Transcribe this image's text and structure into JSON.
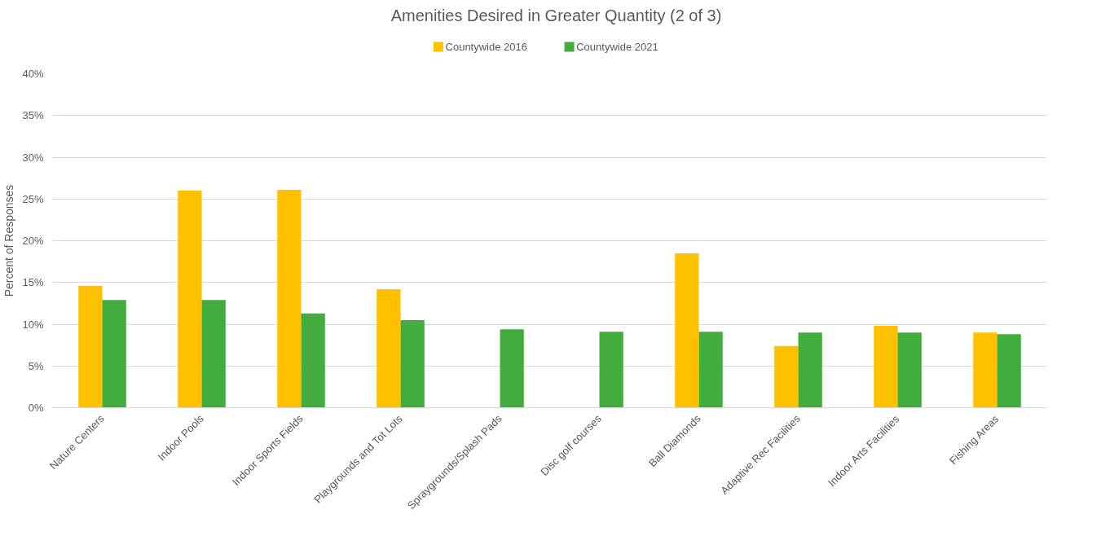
{
  "chart_data": {
    "type": "bar",
    "title": "Amenities Desired in Greater Quantity (2 of 3)",
    "ylabel": "Percent of Responses",
    "categories": [
      "Nature Centers",
      "Indoor Pools",
      "Indoor Sports Fields",
      "Playgrounds and Tot Lots",
      "Spraygrounds/Splash Pads",
      "Disc golf courses",
      "Ball Diamonds",
      "Adaptive Rec Facilities",
      "Indoor Arts Facilities",
      "Fishing Areas"
    ],
    "series": [
      {
        "name": "Countywide 2016",
        "color": "#ffc000",
        "values": [
          14.6,
          26.0,
          26.1,
          14.2,
          null,
          null,
          18.5,
          7.4,
          9.8,
          9.0
        ]
      },
      {
        "name": "Countywide 2021",
        "color": "#43ac3f",
        "values": [
          12.9,
          12.9,
          11.3,
          10.5,
          9.4,
          9.1,
          9.1,
          9.0,
          9.0,
          8.8
        ]
      }
    ],
    "ylim": [
      0,
      40
    ],
    "yticks": [
      {
        "value": 0,
        "label": "0%"
      },
      {
        "value": 5,
        "label": "5%"
      },
      {
        "value": 10,
        "label": "10%"
      },
      {
        "value": 15,
        "label": "15%"
      },
      {
        "value": 20,
        "label": "20%"
      },
      {
        "value": 25,
        "label": "25%"
      },
      {
        "value": 30,
        "label": "30%"
      },
      {
        "value": 35,
        "label": "35%"
      },
      {
        "value": 40,
        "label": "40%"
      }
    ],
    "grid": "y",
    "legend": "top"
  }
}
